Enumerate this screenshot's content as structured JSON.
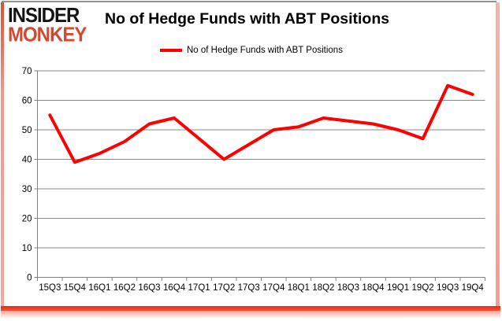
{
  "logo": {
    "line1": "INSIDER",
    "line2": "MONKEY",
    "line1_color": "#141414",
    "line2_color": "#d3482e"
  },
  "header": {
    "title": "No of Hedge Funds with ABT Positions"
  },
  "legend": {
    "label": "No of Hedge Funds with ABT Positions",
    "swatch_color": "#ff0000"
  },
  "chart_data": {
    "type": "line",
    "title": "No of Hedge Funds with ABT Positions",
    "categories": [
      "15Q3",
      "15Q4",
      "16Q1",
      "16Q2",
      "16Q3",
      "16Q4",
      "17Q1",
      "17Q2",
      "17Q3",
      "17Q4",
      "18Q1",
      "18Q2",
      "18Q3",
      "18Q4",
      "19Q1",
      "19Q2",
      "19Q3",
      "19Q4"
    ],
    "series": [
      {
        "name": "No of Hedge Funds with ABT Positions",
        "values": [
          55,
          39,
          42,
          46,
          52,
          54,
          47,
          40,
          45,
          50,
          51,
          54,
          53,
          52,
          50,
          47,
          65,
          62
        ],
        "color": "#ff0000"
      }
    ],
    "xlabel": "",
    "ylabel": "",
    "ylim": [
      0,
      70
    ],
    "yticks": [
      0,
      10,
      20,
      30,
      40,
      50,
      60,
      70
    ],
    "grid": true,
    "gridline_color": "#8a8a8a",
    "axis_color": "#808080",
    "tick_label_color": "#000000",
    "legend_position": "top-center",
    "background": "#ffffff"
  }
}
